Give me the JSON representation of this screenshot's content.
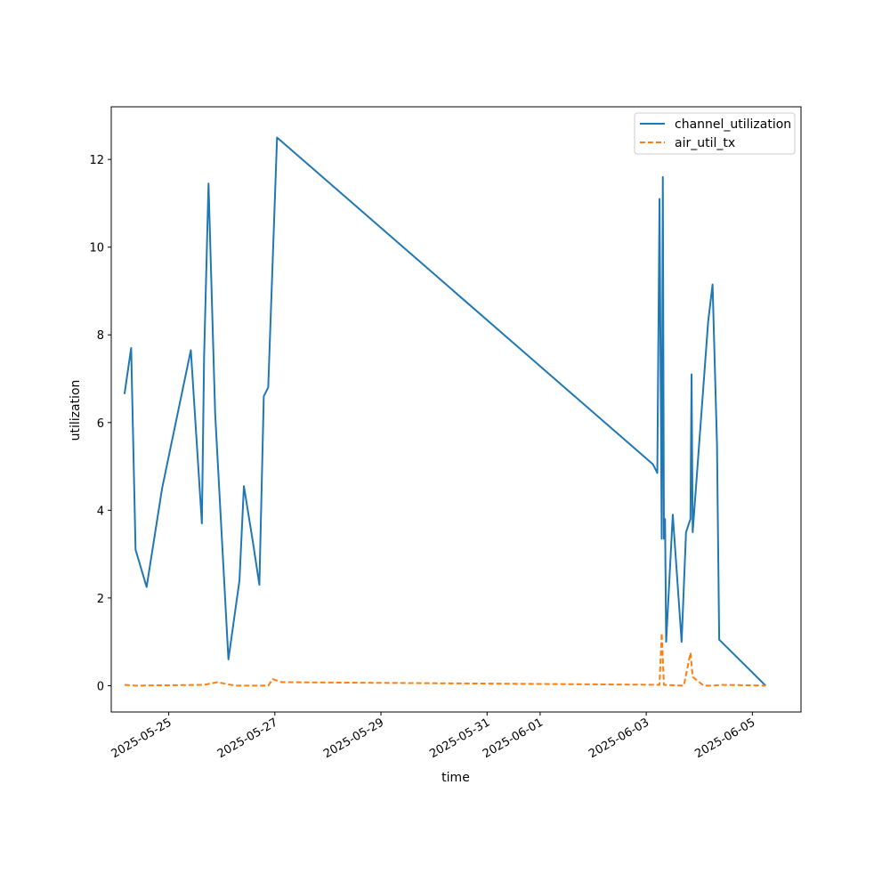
{
  "chart_data": {
    "type": "line",
    "title": "",
    "xlabel": "time",
    "ylabel": "utilization",
    "x_type": "datetime",
    "xlim": [
      "2025-05-23T22:00",
      "2025-06-05T22:00"
    ],
    "ylim": [
      -0.6,
      13.2
    ],
    "grid": false,
    "legend_position": "top-right",
    "x_tick_labels": [
      "2025-05-25",
      "2025-05-27",
      "2025-05-29",
      "2025-05-31",
      "2025-06-01",
      "2025-06-03",
      "2025-06-05"
    ],
    "y_tick_labels": [
      "0",
      "2",
      "4",
      "6",
      "8",
      "10",
      "12"
    ],
    "series": [
      {
        "name": "channel_utilization",
        "color": "#1f77b4",
        "style": "solid",
        "points": [
          [
            "2025-05-24T04:00",
            6.65
          ],
          [
            "2025-05-24T07:00",
            7.7
          ],
          [
            "2025-05-24T09:00",
            3.1
          ],
          [
            "2025-05-24T14:00",
            2.25
          ],
          [
            "2025-05-24T21:00",
            4.5
          ],
          [
            "2025-05-25T10:00",
            7.65
          ],
          [
            "2025-05-25T15:00",
            3.7
          ],
          [
            "2025-05-25T16:00",
            7.5
          ],
          [
            "2025-05-25T18:00",
            11.45
          ],
          [
            "2025-05-25T21:00",
            6.2
          ],
          [
            "2025-05-26T03:00",
            0.6
          ],
          [
            "2025-05-26T08:00",
            2.4
          ],
          [
            "2025-05-26T10:00",
            4.55
          ],
          [
            "2025-05-26T14:00",
            3.3
          ],
          [
            "2025-05-26T17:00",
            2.3
          ],
          [
            "2025-05-26T19:00",
            6.6
          ],
          [
            "2025-05-26T21:00",
            6.8
          ],
          [
            "2025-05-27T01:00",
            12.5
          ],
          [
            "2025-06-03T03:00",
            5.05
          ],
          [
            "2025-06-03T05:00",
            4.85
          ],
          [
            "2025-06-03T06:00",
            11.1
          ],
          [
            "2025-06-03T07:00",
            3.35
          ],
          [
            "2025-06-03T07:30",
            11.6
          ],
          [
            "2025-06-03T08:00",
            3.35
          ],
          [
            "2025-06-03T08:30",
            3.8
          ],
          [
            "2025-06-03T09:00",
            1.0
          ],
          [
            "2025-06-03T12:00",
            3.9
          ],
          [
            "2025-06-03T16:00",
            1.0
          ],
          [
            "2025-06-03T18:00",
            3.5
          ],
          [
            "2025-06-03T20:00",
            3.8
          ],
          [
            "2025-06-03T20:30",
            7.1
          ],
          [
            "2025-06-03T21:00",
            3.5
          ],
          [
            "2025-06-04T04:00",
            8.3
          ],
          [
            "2025-06-04T06:00",
            9.15
          ],
          [
            "2025-06-04T08:00",
            5.5
          ],
          [
            "2025-06-04T09:00",
            1.05
          ],
          [
            "2025-06-05T06:00",
            0.0
          ]
        ]
      },
      {
        "name": "air_util_tx",
        "color": "#ff7f0e",
        "style": "dashed",
        "points": [
          [
            "2025-05-24T04:00",
            0.02
          ],
          [
            "2025-05-24T09:00",
            0.0
          ],
          [
            "2025-05-25T16:00",
            0.02
          ],
          [
            "2025-05-25T22:00",
            0.08
          ],
          [
            "2025-05-26T04:00",
            0.02
          ],
          [
            "2025-05-26T07:00",
            0.0
          ],
          [
            "2025-05-26T21:00",
            0.0
          ],
          [
            "2025-05-26T23:00",
            0.15
          ],
          [
            "2025-05-27T03:00",
            0.08
          ],
          [
            "2025-06-03T06:00",
            0.02
          ],
          [
            "2025-06-03T07:00",
            1.2
          ],
          [
            "2025-06-03T08:00",
            0.02
          ],
          [
            "2025-06-03T17:00",
            0.0
          ],
          [
            "2025-06-03T20:00",
            0.75
          ],
          [
            "2025-06-03T21:00",
            0.2
          ],
          [
            "2025-06-04T02:00",
            0.0
          ],
          [
            "2025-06-04T06:00",
            0.0
          ],
          [
            "2025-06-04T10:00",
            0.02
          ],
          [
            "2025-06-05T06:00",
            0.0
          ]
        ]
      }
    ]
  }
}
